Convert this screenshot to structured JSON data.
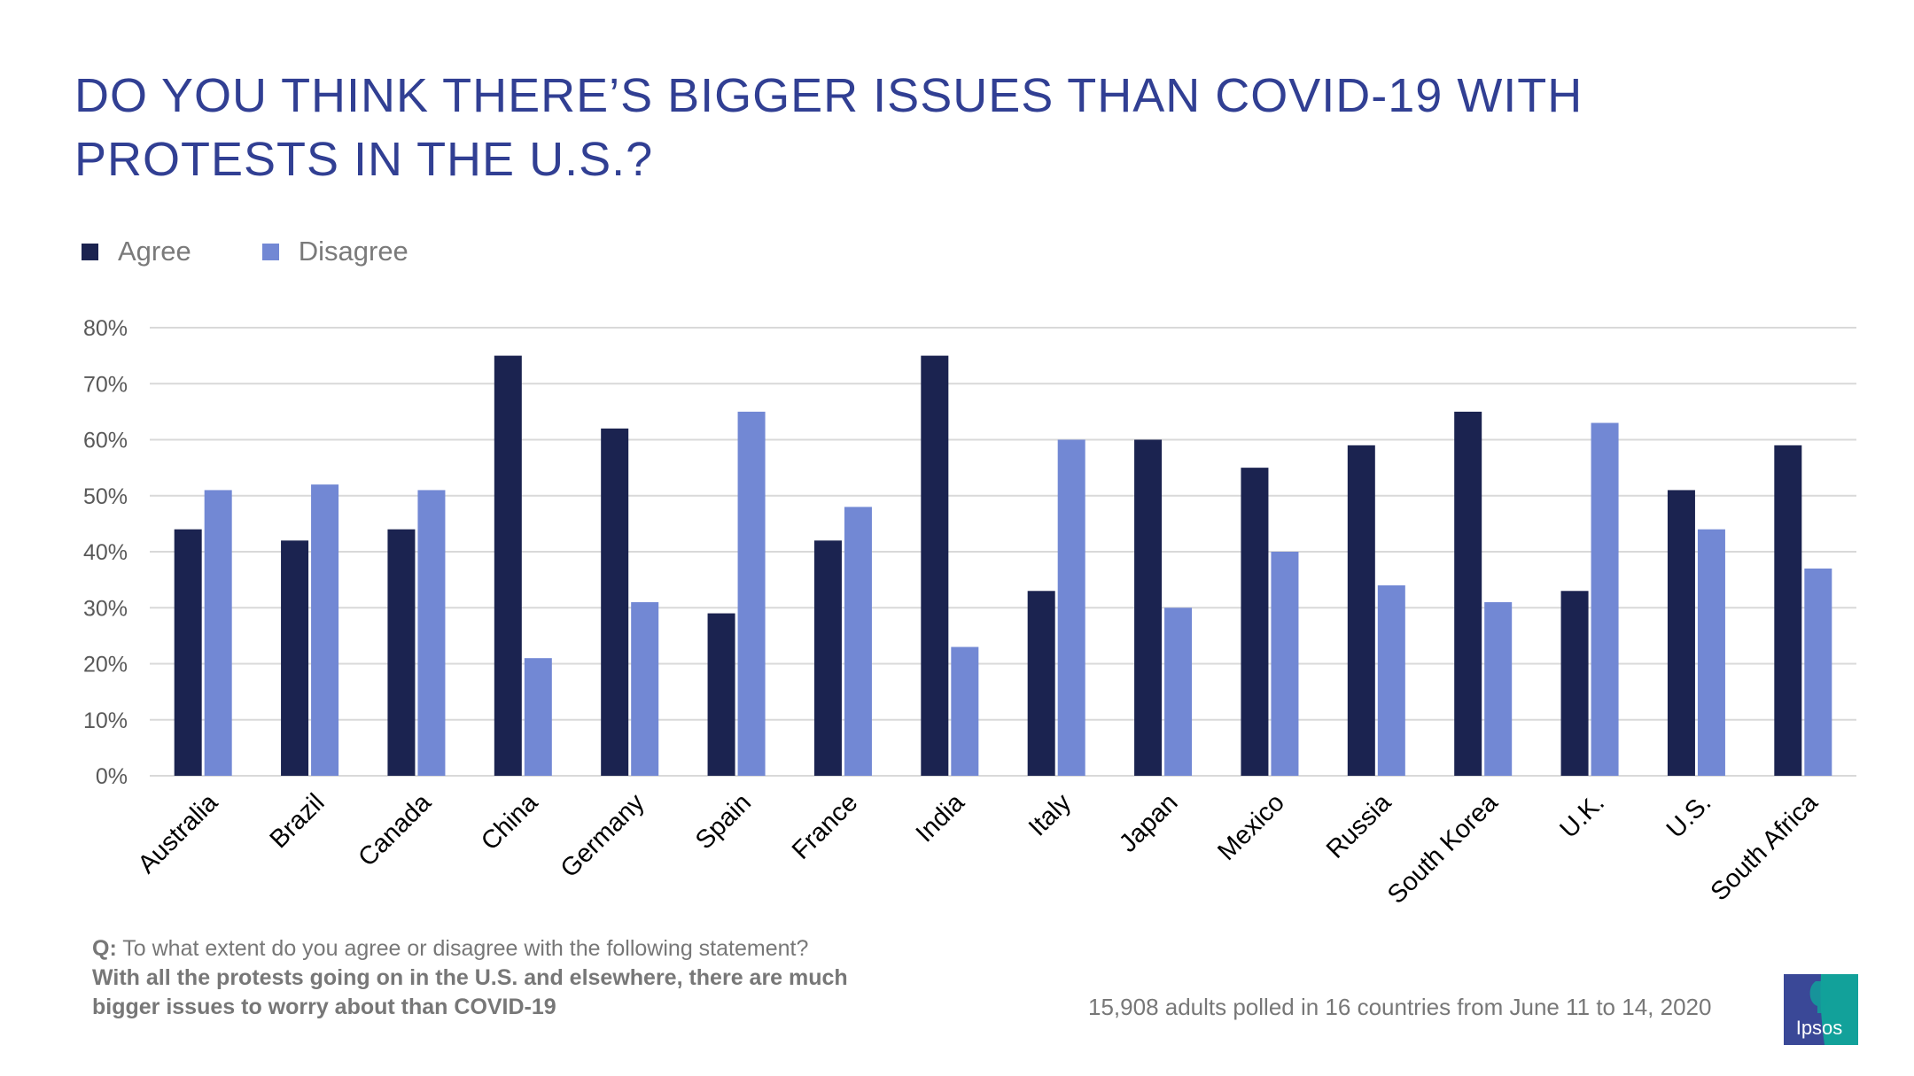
{
  "title": "DO YOU THINK THERE’S BIGGER ISSUES THAN COVID-19 WITH PROTESTS IN THE U.S.?",
  "legend": [
    {
      "label": "Agree",
      "color": "#1b2350"
    },
    {
      "label": "Disagree",
      "color": "#7288d4"
    }
  ],
  "question": {
    "prefix": "Q:",
    "text": "To what extent do you agree or disagree with the following statement?",
    "statement_line1": "With all the protests going on in the U.S. and elsewhere, there are much",
    "statement_line2": "bigger issues to worry about than COVID-19"
  },
  "footnote": "15,908 adults polled in 16 countries from June 11 to 14, 2020",
  "logo": {
    "text": "Ipsos",
    "colors": {
      "left": "#3a4897",
      "right": "#12a19a"
    }
  },
  "colors": {
    "title": "#313f93",
    "gridline": "#d9d9d9",
    "axis_text": "#595959",
    "category_text": "#000000"
  },
  "chart_data": {
    "type": "bar",
    "title": "DO YOU THINK THERE’S BIGGER ISSUES THAN COVID-19 WITH PROTESTS IN THE U.S.?",
    "xlabel": "",
    "ylabel": "",
    "ylim": [
      0,
      80
    ],
    "yticks": [
      0,
      10,
      20,
      30,
      40,
      50,
      60,
      70,
      80
    ],
    "ytick_labels": [
      "0%",
      "10%",
      "20%",
      "30%",
      "40%",
      "50%",
      "60%",
      "70%",
      "80%"
    ],
    "grid": true,
    "legend_position": "top-left",
    "categories": [
      "Australia",
      "Brazil",
      "Canada",
      "China",
      "Germany",
      "Spain",
      "France",
      "India",
      "Italy",
      "Japan",
      "Mexico",
      "Russia",
      "South Korea",
      "U.K.",
      "U.S.",
      "South Africa"
    ],
    "series": [
      {
        "name": "Agree",
        "color": "#1b2350",
        "values": [
          44,
          42,
          44,
          75,
          62,
          29,
          42,
          75,
          33,
          60,
          55,
          59,
          65,
          33,
          51,
          59
        ]
      },
      {
        "name": "Disagree",
        "color": "#7288d4",
        "values": [
          51,
          52,
          51,
          21,
          31,
          65,
          48,
          23,
          60,
          30,
          40,
          34,
          31,
          63,
          44,
          37
        ]
      }
    ]
  }
}
